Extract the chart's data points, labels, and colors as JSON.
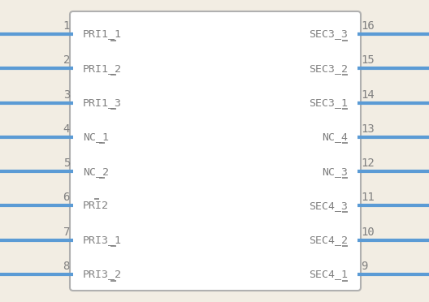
{
  "bg_color": "#f2ede3",
  "box_bg": "#ffffff",
  "box_edge_color": "#b0b0b0",
  "pin_color": "#5b9bd5",
  "text_color": "#808080",
  "left_pins": [
    {
      "num": 1,
      "label": "PRI1_1"
    },
    {
      "num": 2,
      "label": "PRI1_2"
    },
    {
      "num": 3,
      "label": "PRI1_3"
    },
    {
      "num": 4,
      "label": "NC_1"
    },
    {
      "num": 5,
      "label": "NC_2"
    },
    {
      "num": 6,
      "label": "PRI2"
    },
    {
      "num": 7,
      "label": "PRI3_1"
    },
    {
      "num": 8,
      "label": "PRI3_2"
    }
  ],
  "right_pins": [
    {
      "num": 16,
      "label": "SEC3_3"
    },
    {
      "num": 15,
      "label": "SEC3_2"
    },
    {
      "num": 14,
      "label": "SEC3_1"
    },
    {
      "num": 13,
      "label": "NC_4"
    },
    {
      "num": 12,
      "label": "NC_3"
    },
    {
      "num": 11,
      "label": "SEC4_3"
    },
    {
      "num": 10,
      "label": "SEC4_2"
    },
    {
      "num": 9,
      "label": "SEC4_1"
    }
  ]
}
